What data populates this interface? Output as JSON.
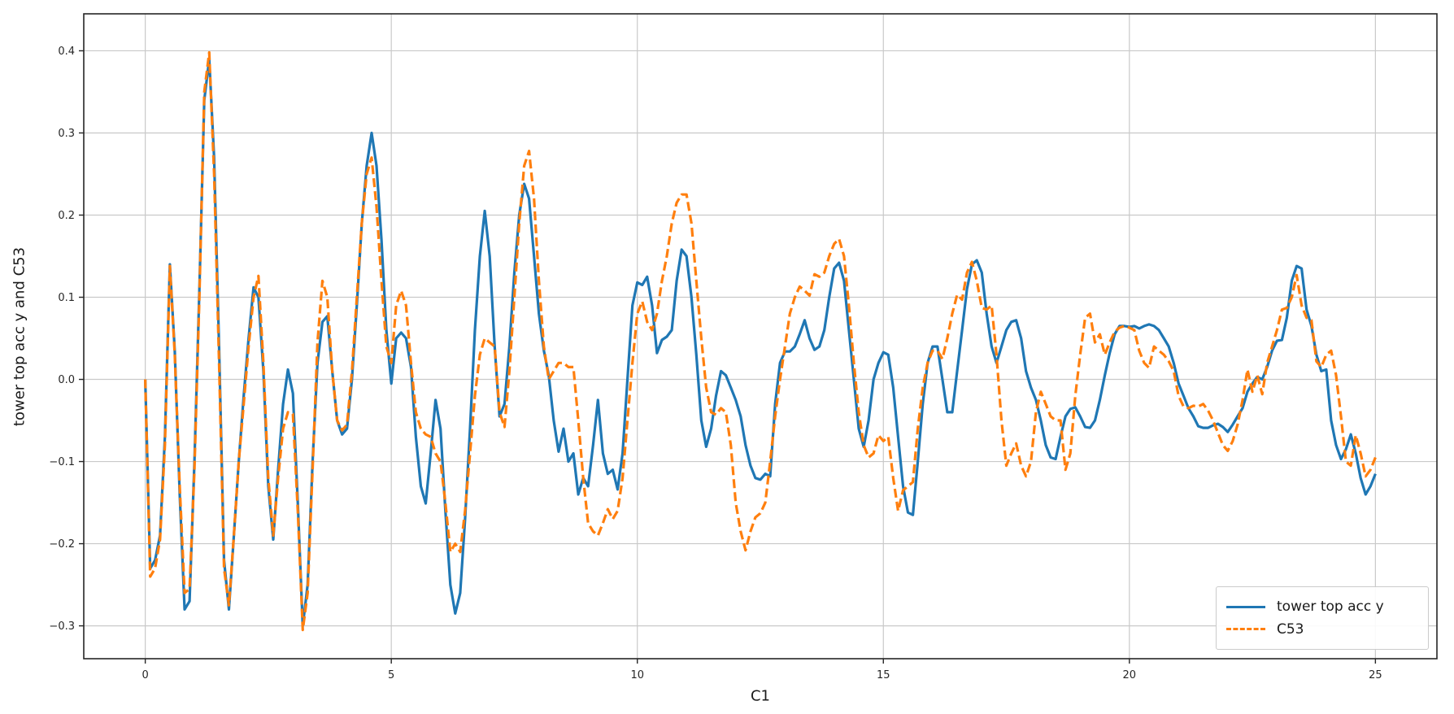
{
  "figure": {
    "background": "#ffffff"
  },
  "chart_data": {
    "type": "line",
    "title": "",
    "xlabel": "C1",
    "ylabel": "tower top acc y and C53",
    "xlim": [
      -1.25,
      26.25
    ],
    "ylim": [
      -0.34,
      0.445
    ],
    "x_ticks": [
      0,
      5,
      10,
      15,
      20,
      25
    ],
    "x_tick_labels": [
      "0",
      "5",
      "10",
      "15",
      "20",
      "25"
    ],
    "y_ticks": [
      0.4,
      0.3,
      0.2,
      0.1,
      0.0,
      -0.1,
      -0.2,
      -0.3
    ],
    "y_tick_labels": [
      "0.4",
      "0.3",
      "0.2",
      "0.1",
      "0.0",
      "−0.1",
      "−0.2",
      "−0.3"
    ],
    "grid": true,
    "grid_color": "#c9c9c9",
    "axis_color": "#262626",
    "legend_position": "lower right",
    "x_start": 0,
    "x_step": 0.1,
    "series": [
      {
        "name": "tower top acc y",
        "color": "#1f77b4",
        "style": "solid",
        "values": [
          0.0,
          -0.23,
          -0.22,
          -0.19,
          -0.07,
          0.14,
          0.035,
          -0.14,
          -0.28,
          -0.27,
          -0.1,
          0.11,
          0.34,
          0.39,
          0.27,
          0.04,
          -0.22,
          -0.28,
          -0.19,
          -0.1,
          -0.02,
          0.05,
          0.112,
          0.1,
          0.01,
          -0.13,
          -0.195,
          -0.11,
          -0.03,
          0.012,
          -0.017,
          -0.15,
          -0.3,
          -0.25,
          -0.1,
          0.02,
          0.07,
          0.077,
          0.01,
          -0.05,
          -0.067,
          -0.06,
          0.0,
          0.09,
          0.19,
          0.26,
          0.3,
          0.26,
          0.17,
          0.06,
          -0.005,
          0.05,
          0.057,
          0.05,
          0.015,
          -0.07,
          -0.13,
          -0.151,
          -0.09,
          -0.025,
          -0.06,
          -0.16,
          -0.25,
          -0.285,
          -0.26,
          -0.17,
          -0.06,
          0.06,
          0.15,
          0.205,
          0.15,
          0.04,
          -0.045,
          -0.03,
          0.04,
          0.13,
          0.2,
          0.238,
          0.22,
          0.15,
          0.08,
          0.035,
          0.005,
          -0.05,
          -0.088,
          -0.06,
          -0.1,
          -0.09,
          -0.14,
          -0.12,
          -0.13,
          -0.08,
          -0.025,
          -0.09,
          -0.115,
          -0.11,
          -0.134,
          -0.09,
          0.0,
          0.09,
          0.118,
          0.115,
          0.125,
          0.09,
          0.032,
          0.048,
          0.052,
          0.06,
          0.12,
          0.158,
          0.15,
          0.1,
          0.03,
          -0.05,
          -0.082,
          -0.06,
          -0.02,
          0.01,
          0.005,
          -0.01,
          -0.025,
          -0.045,
          -0.08,
          -0.105,
          -0.12,
          -0.122,
          -0.115,
          -0.118,
          -0.03,
          0.02,
          0.034,
          0.034,
          0.04,
          0.055,
          0.072,
          0.05,
          0.036,
          0.04,
          0.06,
          0.1,
          0.135,
          0.142,
          0.12,
          0.06,
          0.0,
          -0.06,
          -0.082,
          -0.05,
          0.0,
          0.02,
          0.033,
          0.03,
          -0.01,
          -0.07,
          -0.13,
          -0.162,
          -0.165,
          -0.1,
          -0.03,
          0.02,
          0.04,
          0.04,
          0.0,
          -0.04,
          -0.04,
          0.01,
          0.06,
          0.11,
          0.14,
          0.145,
          0.13,
          0.08,
          0.04,
          0.02,
          0.04,
          0.06,
          0.07,
          0.072,
          0.05,
          0.01,
          -0.01,
          -0.025,
          -0.05,
          -0.08,
          -0.095,
          -0.097,
          -0.07,
          -0.045,
          -0.036,
          -0.034,
          -0.045,
          -0.058,
          -0.059,
          -0.05,
          -0.025,
          0.005,
          0.032,
          0.055,
          0.065,
          0.065,
          0.064,
          0.065,
          0.062,
          0.065,
          0.067,
          0.065,
          0.06,
          0.05,
          0.04,
          0.02,
          -0.005,
          -0.02,
          -0.035,
          -0.045,
          -0.057,
          -0.059,
          -0.059,
          -0.056,
          -0.054,
          -0.058,
          -0.064,
          -0.055,
          -0.045,
          -0.035,
          -0.015,
          -0.005,
          0.003,
          0.0,
          0.015,
          0.035,
          0.047,
          0.048,
          0.075,
          0.12,
          0.138,
          0.135,
          0.085,
          0.065,
          0.03,
          0.01,
          0.012,
          -0.05,
          -0.08,
          -0.097,
          -0.085,
          -0.067,
          -0.09,
          -0.12,
          -0.14,
          -0.13,
          -0.115
        ]
      },
      {
        "name": "C53",
        "color": "#ff7f0e",
        "style": "dashed",
        "values": [
          0.0,
          -0.24,
          -0.23,
          -0.195,
          -0.08,
          0.138,
          0.03,
          -0.13,
          -0.26,
          -0.255,
          -0.11,
          0.1,
          0.35,
          0.398,
          0.25,
          0.02,
          -0.23,
          -0.275,
          -0.19,
          -0.1,
          -0.03,
          0.04,
          0.1,
          0.126,
          0.02,
          -0.12,
          -0.19,
          -0.12,
          -0.06,
          -0.04,
          -0.042,
          -0.16,
          -0.305,
          -0.26,
          -0.11,
          0.045,
          0.12,
          0.1,
          0.01,
          -0.05,
          -0.062,
          -0.055,
          0.01,
          0.1,
          0.19,
          0.25,
          0.27,
          0.21,
          0.12,
          0.04,
          0.02,
          0.09,
          0.108,
          0.09,
          0.02,
          -0.04,
          -0.06,
          -0.067,
          -0.07,
          -0.09,
          -0.1,
          -0.15,
          -0.21,
          -0.2,
          -0.21,
          -0.16,
          -0.09,
          -0.02,
          0.03,
          0.05,
          0.045,
          0.04,
          -0.04,
          -0.058,
          0.01,
          0.1,
          0.19,
          0.26,
          0.278,
          0.22,
          0.12,
          0.04,
          0.0,
          0.01,
          0.02,
          0.02,
          0.015,
          0.015,
          -0.05,
          -0.12,
          -0.175,
          -0.185,
          -0.19,
          -0.175,
          -0.158,
          -0.17,
          -0.16,
          -0.12,
          -0.05,
          0.02,
          0.08,
          0.095,
          0.07,
          0.06,
          0.08,
          0.12,
          0.15,
          0.19,
          0.215,
          0.225,
          0.225,
          0.19,
          0.12,
          0.05,
          -0.01,
          -0.04,
          -0.043,
          -0.035,
          -0.04,
          -0.08,
          -0.15,
          -0.185,
          -0.208,
          -0.185,
          -0.168,
          -0.163,
          -0.15,
          -0.1,
          -0.045,
          0.0,
          0.04,
          0.08,
          0.1,
          0.113,
          0.108,
          0.102,
          0.128,
          0.125,
          0.13,
          0.15,
          0.165,
          0.171,
          0.15,
          0.09,
          0.02,
          -0.04,
          -0.08,
          -0.095,
          -0.09,
          -0.068,
          -0.075,
          -0.07,
          -0.12,
          -0.16,
          -0.135,
          -0.13,
          -0.125,
          -0.06,
          -0.01,
          0.02,
          0.035,
          0.035,
          0.025,
          0.05,
          0.08,
          0.103,
          0.097,
          0.13,
          0.143,
          0.12,
          0.087,
          0.085,
          0.09,
          0.03,
          -0.05,
          -0.105,
          -0.09,
          -0.078,
          -0.105,
          -0.118,
          -0.1,
          -0.04,
          -0.015,
          -0.03,
          -0.045,
          -0.05,
          -0.05,
          -0.11,
          -0.09,
          -0.02,
          0.03,
          0.075,
          0.08,
          0.045,
          0.055,
          0.03,
          0.045,
          0.058,
          0.063,
          0.065,
          0.063,
          0.06,
          0.035,
          0.02,
          0.014,
          0.04,
          0.035,
          0.03,
          0.022,
          0.01,
          -0.02,
          -0.033,
          -0.035,
          -0.032,
          -0.033,
          -0.03,
          -0.038,
          -0.05,
          -0.065,
          -0.08,
          -0.087,
          -0.075,
          -0.055,
          -0.025,
          0.012,
          -0.015,
          0.005,
          -0.018,
          0.02,
          0.04,
          0.06,
          0.085,
          0.087,
          0.1,
          0.127,
          0.09,
          0.075,
          0.072,
          0.022,
          0.015,
          0.03,
          0.035,
          0.005,
          -0.045,
          -0.1,
          -0.105,
          -0.068,
          -0.09,
          -0.118,
          -0.11,
          -0.095
        ]
      }
    ]
  }
}
